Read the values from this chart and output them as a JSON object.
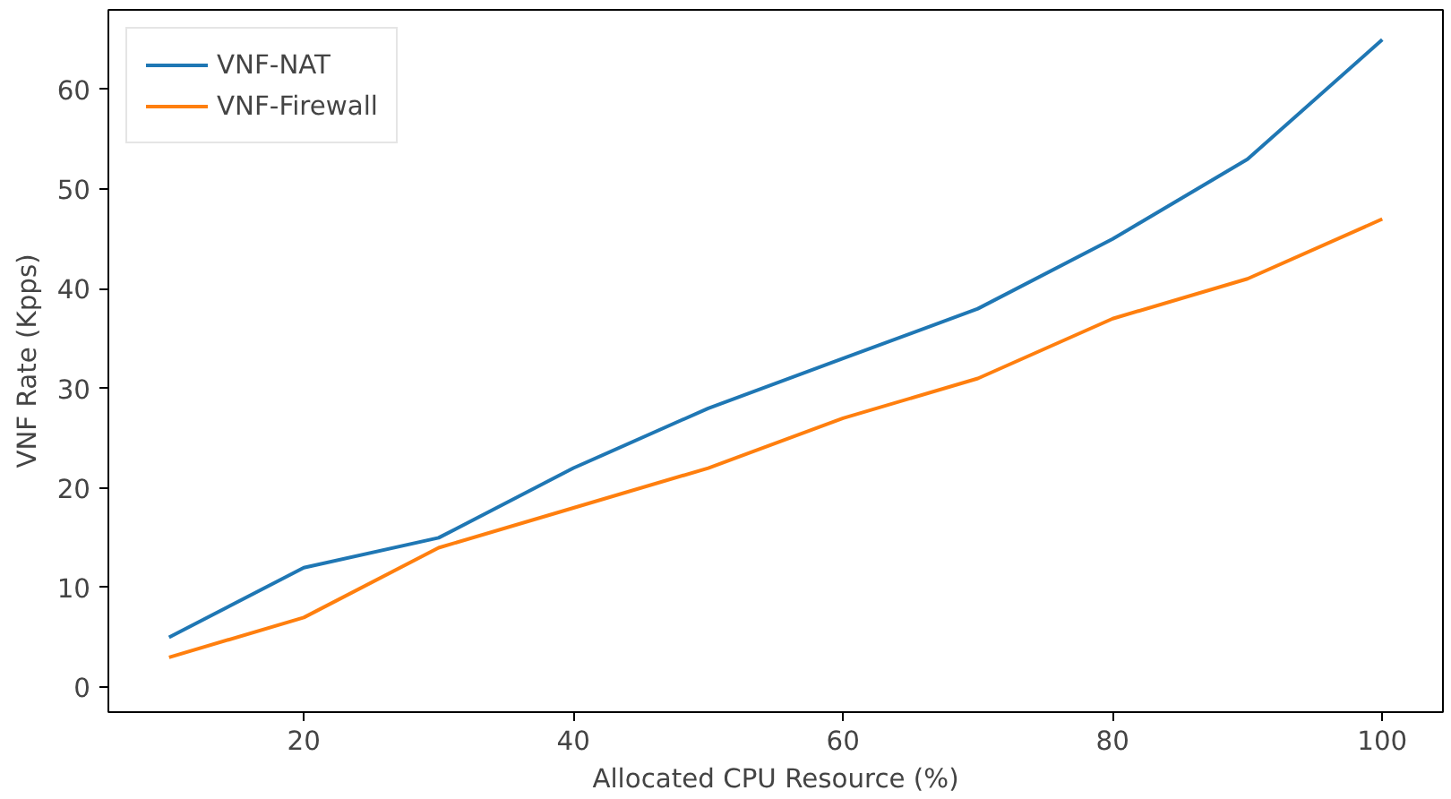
{
  "chart_data": {
    "type": "line",
    "xlabel": "Allocated CPU Resource (%)",
    "ylabel": "VNF Rate (Kpps)",
    "x": [
      10,
      20,
      30,
      40,
      50,
      60,
      70,
      80,
      90,
      100
    ],
    "series": [
      {
        "name": "VNF-NAT",
        "color": "#1f77b4",
        "values": [
          5,
          12,
          15,
          22,
          28,
          33,
          38,
          45,
          53,
          65
        ]
      },
      {
        "name": "VNF-Firewall",
        "color": "#ff7f0e",
        "values": [
          3,
          7,
          14,
          18,
          22,
          27,
          31,
          37,
          41,
          47
        ]
      }
    ],
    "xlim": [
      5.5,
      104.5
    ],
    "ylim": [
      -2.5,
      68
    ],
    "xticks": [
      20,
      40,
      60,
      80,
      100
    ],
    "yticks": [
      0,
      10,
      20,
      30,
      40,
      50,
      60
    ],
    "grid": false,
    "legend": "top left",
    "marker": "none",
    "line_style": "solid"
  }
}
